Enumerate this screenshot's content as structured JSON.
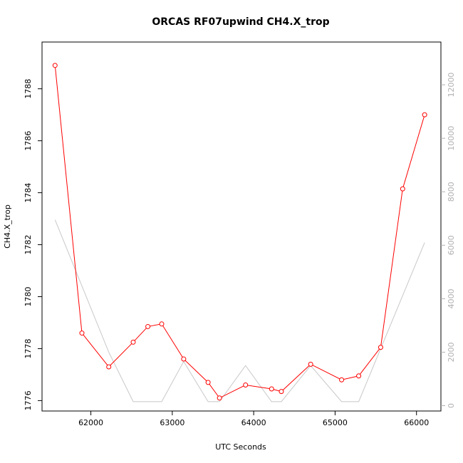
{
  "chart_data": {
    "type": "line",
    "title": "ORCAS RF07upwind CH4.X_trop",
    "xlabel": "UTC Seconds",
    "ylabel": "CH4.X_trop",
    "xlim": [
      61400,
      66300
    ],
    "ylim": [
      1775.6,
      1789.8
    ],
    "y2lim": [
      -200,
      13600
    ],
    "xticks": [
      62000,
      63000,
      64000,
      65000,
      66000
    ],
    "yticks": [
      1776,
      1778,
      1780,
      1782,
      1784,
      1786,
      1788
    ],
    "y2ticks": [
      0,
      2000,
      4000,
      6000,
      8000,
      10000,
      12000
    ],
    "grid": false,
    "series": [
      {
        "axis": "left",
        "color": "#ff0000",
        "markers": "open-circle",
        "x": [
          61560,
          61890,
          62220,
          62520,
          62700,
          62870,
          63140,
          63440,
          63580,
          63900,
          64220,
          64340,
          64700,
          65080,
          65290,
          65560,
          65830,
          66100
        ],
        "y": [
          1788.9,
          1778.6,
          1777.3,
          1778.25,
          1778.85,
          1778.95,
          1777.6,
          1776.7,
          1776.1,
          1776.6,
          1776.45,
          1776.35,
          1777.4,
          1776.8,
          1776.95,
          1778.05,
          1784.15,
          1787.0
        ]
      },
      {
        "axis": "right",
        "color": "#c8c8c8",
        "markers": "none",
        "x": [
          61560,
          62220,
          62520,
          62870,
          63140,
          63440,
          63580,
          63900,
          64220,
          64340,
          64700,
          65080,
          65290,
          66100
        ],
        "y": [
          6950,
          2000,
          150,
          150,
          1650,
          150,
          150,
          1500,
          150,
          150,
          1500,
          150,
          150,
          6100
        ]
      }
    ]
  }
}
